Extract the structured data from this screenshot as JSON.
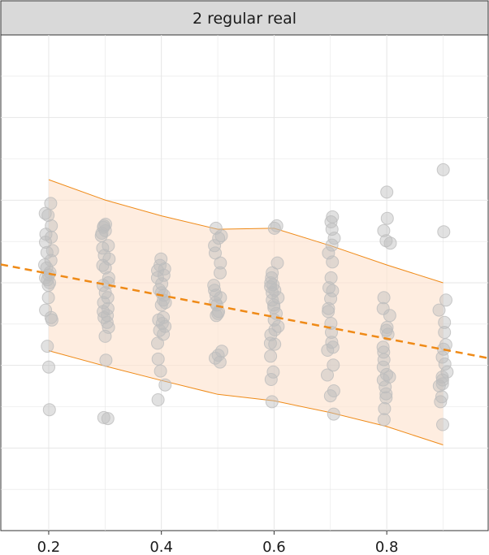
{
  "chart_data": {
    "type": "scatter",
    "panel_title": "2 regular real",
    "x_ticks": [
      0.2,
      0.4,
      0.6,
      0.8
    ],
    "xlim": [
      0.115,
      0.98
    ],
    "ylim": [
      0,
      1
    ],
    "grid": true,
    "y_tick_labels_shown": false,
    "colors": {
      "points": "#bdbdbd",
      "band_fill": "#fde3cf",
      "band_edge": "#ef8a17",
      "trend": "#ef8a17",
      "strip_bg": "#d9d9d9",
      "grid": "#e6e6e6"
    },
    "trend_line": {
      "style": "dashed",
      "x": [
        0.115,
        0.98
      ],
      "y": [
        0.537,
        0.348
      ]
    },
    "band": {
      "x": [
        0.2,
        0.3,
        0.4,
        0.5,
        0.6,
        0.7,
        0.8,
        0.9
      ],
      "upper": [
        0.708,
        0.667,
        0.635,
        0.608,
        0.61,
        0.575,
        0.536,
        0.5
      ],
      "lower": [
        0.363,
        0.332,
        0.303,
        0.275,
        0.262,
        0.238,
        0.21,
        0.173
      ]
    },
    "points": [
      {
        "x": 0.2,
        "y": [
          0.66,
          0.64,
          0.636,
          0.615,
          0.598,
          0.592,
          0.582,
          0.565,
          0.561,
          0.545,
          0.536,
          0.53,
          0.521,
          0.516,
          0.51,
          0.506,
          0.5,
          0.495,
          0.47,
          0.445,
          0.43,
          0.425,
          0.372,
          0.33,
          0.244
        ]
      },
      {
        "x": 0.3,
        "y": [
          0.618,
          0.615,
          0.612,
          0.605,
          0.6,
          0.595,
          0.575,
          0.57,
          0.555,
          0.548,
          0.535,
          0.53,
          0.51,
          0.5,
          0.495,
          0.48,
          0.47,
          0.46,
          0.448,
          0.442,
          0.434,
          0.43,
          0.42,
          0.41,
          0.392,
          0.344,
          0.228,
          0.226
        ]
      },
      {
        "x": 0.4,
        "y": [
          0.548,
          0.535,
          0.528,
          0.525,
          0.515,
          0.51,
          0.498,
          0.486,
          0.48,
          0.475,
          0.465,
          0.46,
          0.455,
          0.43,
          0.425,
          0.418,
          0.412,
          0.404,
          0.396,
          0.378,
          0.346,
          0.322,
          0.294,
          0.264
        ]
      },
      {
        "x": 0.5,
        "y": [
          0.61,
          0.595,
          0.59,
          0.575,
          0.56,
          0.54,
          0.52,
          0.495,
          0.485,
          0.475,
          0.47,
          0.46,
          0.455,
          0.442,
          0.438,
          0.434,
          0.362,
          0.354,
          0.348,
          0.34
        ]
      },
      {
        "x": 0.6,
        "y": [
          0.615,
          0.61,
          0.54,
          0.52,
          0.51,
          0.5,
          0.496,
          0.492,
          0.485,
          0.48,
          0.47,
          0.465,
          0.455,
          0.45,
          0.438,
          0.425,
          0.412,
          0.405,
          0.395,
          0.378,
          0.376,
          0.352,
          0.32,
          0.305,
          0.26
        ]
      },
      {
        "x": 0.7,
        "y": [
          0.633,
          0.623,
          0.608,
          0.59,
          0.576,
          0.56,
          0.542,
          0.51,
          0.49,
          0.484,
          0.468,
          0.448,
          0.442,
          0.418,
          0.4,
          0.38,
          0.37,
          0.364,
          0.334,
          0.314,
          0.282,
          0.272,
          0.235
        ]
      },
      {
        "x": 0.8,
        "y": [
          0.683,
          0.63,
          0.605,
          0.585,
          0.58,
          0.47,
          0.448,
          0.434,
          0.41,
          0.404,
          0.396,
          0.37,
          0.36,
          0.345,
          0.33,
          0.315,
          0.31,
          0.304,
          0.29,
          0.276,
          0.268,
          0.246,
          0.224
        ]
      },
      {
        "x": 0.9,
        "y": [
          0.728,
          0.603,
          0.465,
          0.445,
          0.42,
          0.4,
          0.375,
          0.366,
          0.35,
          0.336,
          0.32,
          0.31,
          0.304,
          0.296,
          0.292,
          0.27,
          0.26,
          0.214
        ]
      }
    ]
  }
}
